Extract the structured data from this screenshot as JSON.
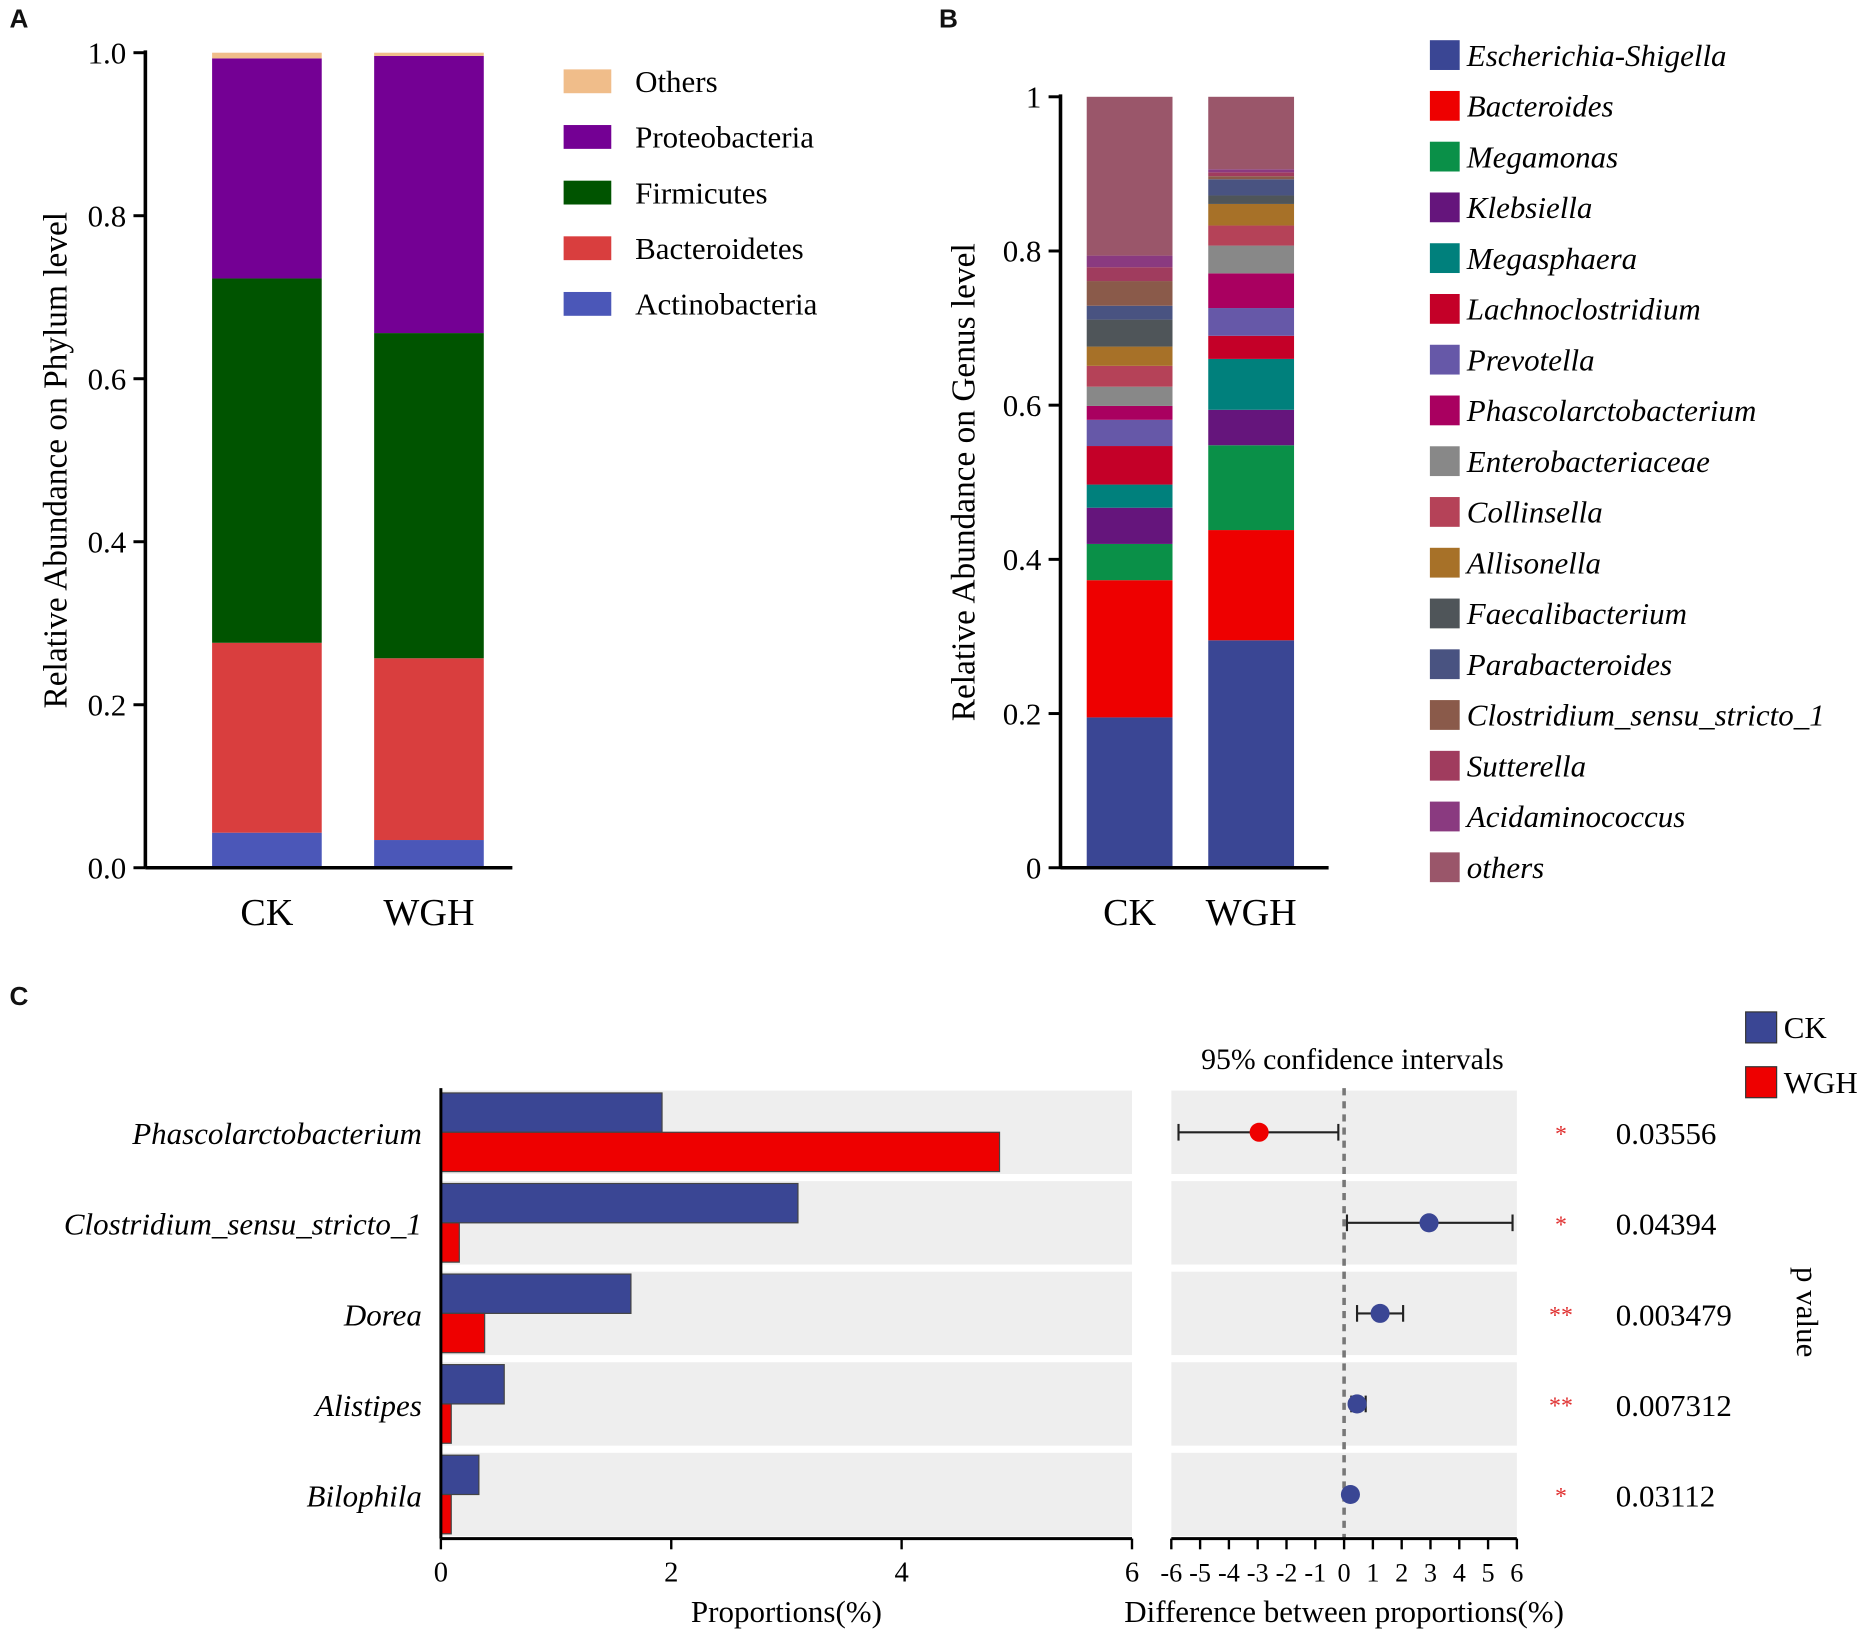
{
  "panel_labels": {
    "a": "A",
    "b": "B",
    "c": "C"
  },
  "chart_data": [
    {
      "id": "A",
      "type": "bar",
      "stacked": true,
      "categories": [
        "CK",
        "WGH"
      ],
      "ylabel": "Relative Abundance on Phylum level",
      "ylim": [
        0,
        1
      ],
      "yticks": [
        "0.0",
        "0.2",
        "0.4",
        "0.6",
        "0.8",
        "1.0"
      ],
      "legend_position": "right",
      "series": [
        {
          "name": "Actinobacteria",
          "color": "#4b57b8",
          "values": [
            0.043,
            0.034
          ]
        },
        {
          "name": "Bacteroidetes",
          "color": "#d93e3e",
          "values": [
            0.233,
            0.223
          ]
        },
        {
          "name": "Firmicutes",
          "color": "#005400",
          "values": [
            0.447,
            0.399
          ]
        },
        {
          "name": "Proteobacteria",
          "color": "#740094",
          "values": [
            0.27,
            0.34
          ]
        },
        {
          "name": "Others",
          "color": "#f0bd8a",
          "values": [
            0.007,
            0.004
          ]
        }
      ]
    },
    {
      "id": "B",
      "type": "bar",
      "stacked": true,
      "categories": [
        "CK",
        "WGH"
      ],
      "ylabel": "Relative Abundance on Genus level",
      "ylim": [
        0,
        1
      ],
      "yticks": [
        "0",
        "0.2",
        "0.4",
        "0.6",
        "0.8",
        "1"
      ],
      "legend_position": "right",
      "series": [
        {
          "name": "Escherichia-Shigella",
          "color": "#3a4694",
          "values": [
            0.195,
            0.295
          ]
        },
        {
          "name": "Bacteroides",
          "color": "#ee0000",
          "values": [
            0.178,
            0.143
          ]
        },
        {
          "name": "Megamonas",
          "color": "#0a9048",
          "values": [
            0.047,
            0.11
          ]
        },
        {
          "name": "Klebsiella",
          "color": "#65157c",
          "values": [
            0.047,
            0.046
          ]
        },
        {
          "name": "Megasphaera",
          "color": "#00807c",
          "values": [
            0.03,
            0.066
          ]
        },
        {
          "name": "Lachnoclostridium",
          "color": "#c40028",
          "values": [
            0.05,
            0.03
          ]
        },
        {
          "name": "Prevotella",
          "color": "#6658a8",
          "values": [
            0.034,
            0.036
          ]
        },
        {
          "name": "Phascolarctobacterium",
          "color": "#a90060",
          "values": [
            0.018,
            0.045
          ]
        },
        {
          "name": "Enterobacteriaceae",
          "color": "#888888",
          "values": [
            0.025,
            0.036
          ]
        },
        {
          "name": "Collinsella",
          "color": "#b54258",
          "values": [
            0.027,
            0.026
          ]
        },
        {
          "name": "Allisonella",
          "color": "#a77128",
          "values": [
            0.025,
            0.028
          ]
        },
        {
          "name": "Faecalibacterium",
          "color": "#4f5559",
          "values": [
            0.035,
            0.011
          ]
        },
        {
          "name": "Parabacteroides",
          "color": "#495381",
          "values": [
            0.018,
            0.021
          ]
        },
        {
          "name": "Clostridium_sensu_stricto_1",
          "color": "#8a5a4a",
          "values": [
            0.032,
            0.004
          ]
        },
        {
          "name": "Sutterella",
          "color": "#a03c5e",
          "values": [
            0.018,
            0.005
          ]
        },
        {
          "name": "Acidaminococcus",
          "color": "#8a3a80",
          "values": [
            0.015,
            0.004
          ]
        },
        {
          "name": "others",
          "color": "#9a566a",
          "values": [
            0.206,
            0.094
          ]
        }
      ]
    },
    {
      "id": "C",
      "type": "bar",
      "orientation": "horizontal",
      "title": "",
      "xlabel": "Proportions(%)",
      "xlim": [
        0,
        6
      ],
      "xticks": [
        "0",
        "2",
        "4",
        "6"
      ],
      "categories": [
        "Phascolarctobacterium",
        "Clostridium_sensu_stricto_1",
        "Dorea",
        "Alistipes",
        "Bilophila"
      ],
      "series": [
        {
          "name": "CK",
          "color": "#3a4694",
          "values": [
            1.92,
            3.1,
            1.65,
            0.55,
            0.33
          ]
        },
        {
          "name": "WGH",
          "color": "#ee0000",
          "values": [
            4.85,
            0.16,
            0.38,
            0.09,
            0.09
          ]
        }
      ],
      "legend_position": "top-right"
    },
    {
      "id": "C-ci",
      "type": "scatter",
      "title": "95% confidence intervals",
      "xlabel": "Difference between proportions(%)",
      "xlim": [
        -6,
        6
      ],
      "xticks": [
        "-6",
        "-5",
        "-4",
        "-3",
        "-2",
        "-1",
        "0",
        "1",
        "2",
        "3",
        "4",
        "5",
        "6"
      ],
      "categories": [
        "Phascolarctobacterium",
        "Clostridium_sensu_stricto_1",
        "Dorea",
        "Alistipes",
        "Bilophila"
      ],
      "points": [
        {
          "estimate": -2.95,
          "lower": -5.75,
          "upper": -0.2,
          "group": "WGH",
          "color": "#ee0000"
        },
        {
          "estimate": 2.95,
          "lower": 0.1,
          "upper": 5.85,
          "group": "CK",
          "color": "#3a4694"
        },
        {
          "estimate": 1.25,
          "lower": 0.45,
          "upper": 2.05,
          "group": "CK",
          "color": "#3a4694"
        },
        {
          "estimate": 0.45,
          "lower": 0.25,
          "upper": 0.75,
          "group": "CK",
          "color": "#3a4694"
        },
        {
          "estimate": 0.22,
          "lower": 0.15,
          "upper": 0.3,
          "group": "CK",
          "color": "#3a4694"
        }
      ],
      "pvalue_label": "p value",
      "pvalues": [
        "0.03556",
        "0.04394",
        "0.003479",
        "0.007312",
        "0.03112"
      ],
      "significance": [
        "*",
        "*",
        "**",
        "**",
        "*"
      ],
      "significance_color": "#e03030"
    }
  ]
}
